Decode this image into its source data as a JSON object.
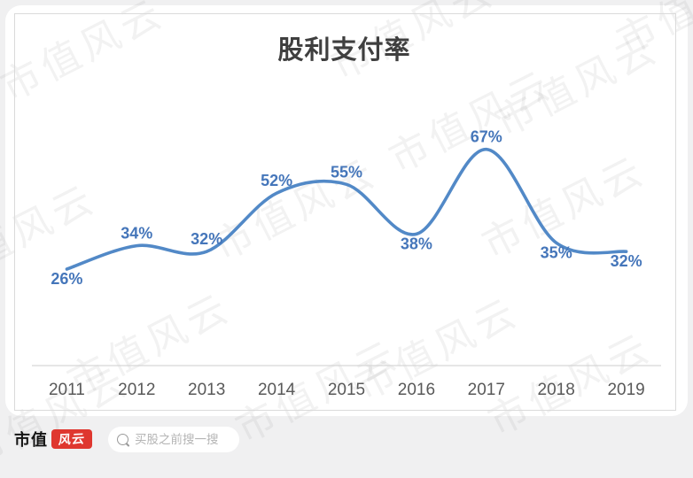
{
  "chart_data": {
    "type": "line",
    "title": "股利支付率",
    "categories": [
      "2011",
      "2012",
      "2013",
      "2014",
      "2015",
      "2016",
      "2017",
      "2018",
      "2019"
    ],
    "values": [
      26,
      34,
      32,
      52,
      55,
      38,
      67,
      35,
      32
    ],
    "value_labels": [
      "26%",
      "34%",
      "32%",
      "52%",
      "55%",
      "38%",
      "67%",
      "35%",
      "32%"
    ],
    "label_positions": [
      "below",
      "above",
      "above",
      "above",
      "above",
      "below",
      "above",
      "below",
      "below"
    ],
    "line_color": "#5289c7",
    "label_color": "#4576ba",
    "axis_color": "#d6d6d6",
    "tick_color": "#595959",
    "grid": "off",
    "legend": "none",
    "smoothed": true
  },
  "watermark": {
    "text": "市值风云"
  },
  "footer": {
    "brand_text": "市值",
    "brand_badge_text": "风云",
    "brand_badge_color": "#df372f",
    "search_placeholder": "买股之前搜一搜"
  }
}
